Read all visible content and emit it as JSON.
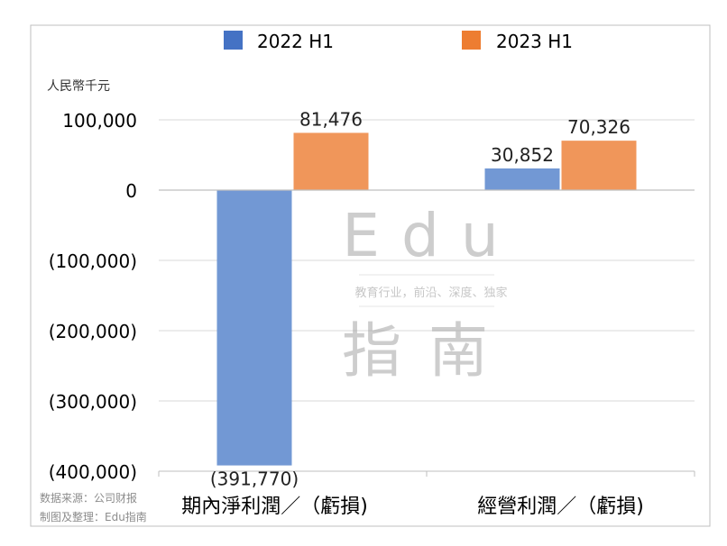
{
  "chart_data": {
    "type": "bar",
    "unit_label": "人民幣千元",
    "categories": [
      "期內淨利潤／（虧損)",
      "經營利潤／（虧損)"
    ],
    "series": [
      {
        "name": "2022 H1",
        "color": "#4472C4",
        "bar_color": "#7298D4",
        "values": [
          -391770,
          30852
        ],
        "value_labels": [
          "(391,770)",
          "30,852"
        ]
      },
      {
        "name": "2023 H1",
        "color": "#ED7D31",
        "bar_color": "#F0965A",
        "values": [
          81476,
          70326
        ],
        "value_labels": [
          "81,476",
          "70,326"
        ]
      }
    ],
    "ylim": [
      -400000,
      100000
    ],
    "yticks": [
      {
        "value": 100000,
        "label": "100,000"
      },
      {
        "value": 0,
        "label": "0"
      },
      {
        "value": -100000,
        "label": "(100,000)"
      },
      {
        "value": -200000,
        "label": "(200,000)"
      },
      {
        "value": -300000,
        "label": "(300,000)"
      },
      {
        "value": -400000,
        "label": "(400,000)"
      }
    ],
    "grid": true,
    "legend_position": "top"
  },
  "watermark": {
    "latin": "Edu",
    "tagline": "教育行业，前沿、深度、独家",
    "cjk": "指南"
  },
  "footer": {
    "source": "数据来源：公司财报",
    "credit": "制图及整理：Edu指南"
  }
}
